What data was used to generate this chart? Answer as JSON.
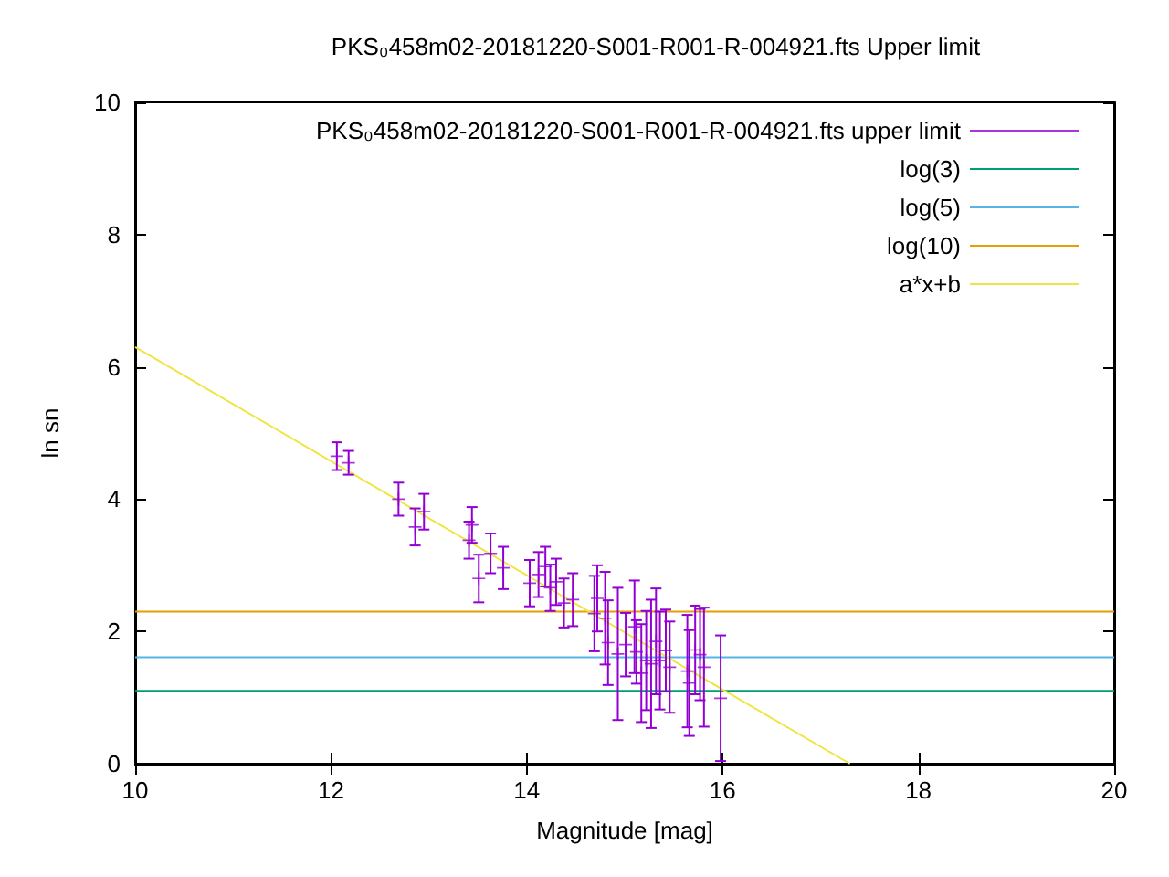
{
  "chart_data": {
    "type": "scatter",
    "title": "PKS₀458m02-20181220-S001-R001-R-004921.fts Upper limit",
    "xlabel": "Magnitude [mag]",
    "ylabel": "ln sn",
    "xlim": [
      10,
      20
    ],
    "xticks": [
      10,
      12,
      14,
      16,
      18,
      20
    ],
    "ylim": [
      0,
      10
    ],
    "yticks": [
      0,
      2,
      4,
      6,
      8,
      10
    ],
    "grid": false,
    "legend": "top right",
    "series": [
      {
        "name": "PKS₀458m02-20181220-S001-R001-R-004921.fts upper limit",
        "color": "#9400d3",
        "marker": "cross",
        "x": [
          12.06,
          12.18,
          12.69,
          12.86,
          12.95,
          13.41,
          13.44,
          13.51,
          13.63,
          13.76,
          14.03,
          14.12,
          14.19,
          14.24,
          14.3,
          14.38,
          14.47,
          14.69,
          14.72,
          14.8,
          14.83,
          14.93,
          15.01,
          15.1,
          15.12,
          15.17,
          15.22,
          15.27,
          15.32,
          15.36,
          15.42,
          15.46,
          15.64,
          15.66,
          15.72,
          15.77,
          15.81,
          15.98
        ],
        "values": [
          4.65,
          4.55,
          4.0,
          3.58,
          3.81,
          3.38,
          3.61,
          2.8,
          3.18,
          2.96,
          2.73,
          2.86,
          2.98,
          2.66,
          2.75,
          2.43,
          2.48,
          2.27,
          2.5,
          2.2,
          1.83,
          1.66,
          1.8,
          2.07,
          1.69,
          1.37,
          1.56,
          1.51,
          1.85,
          1.56,
          1.71,
          1.46,
          1.4,
          1.22,
          1.72,
          1.65,
          1.46,
          0.99
        ],
        "errors": [
          0.21,
          0.18,
          0.25,
          0.28,
          0.27,
          0.28,
          0.27,
          0.36,
          0.3,
          0.32,
          0.35,
          0.34,
          0.3,
          0.35,
          0.35,
          0.37,
          0.4,
          0.57,
          0.5,
          0.7,
          0.64,
          1.0,
          0.48,
          0.7,
          0.48,
          0.74,
          0.75,
          0.97,
          0.8,
          0.74,
          0.62,
          0.69,
          0.85,
          0.8,
          0.67,
          0.69,
          0.9,
          0.95
        ]
      },
      {
        "name": "log(3)",
        "type": "line",
        "color": "#009e73",
        "x": [
          10,
          20
        ],
        "values": [
          1.1,
          1.1
        ]
      },
      {
        "name": "log(5)",
        "type": "line",
        "color": "#56b4e9",
        "x": [
          10,
          20
        ],
        "values": [
          1.61,
          1.61
        ]
      },
      {
        "name": "log(10)",
        "type": "line",
        "color": "#e69f00",
        "x": [
          10,
          20
        ],
        "values": [
          2.3,
          2.3
        ]
      },
      {
        "name": "a*x+b",
        "type": "line",
        "color": "#f0e442",
        "x": [
          10,
          17.3
        ],
        "values": [
          6.3,
          0
        ]
      }
    ]
  }
}
